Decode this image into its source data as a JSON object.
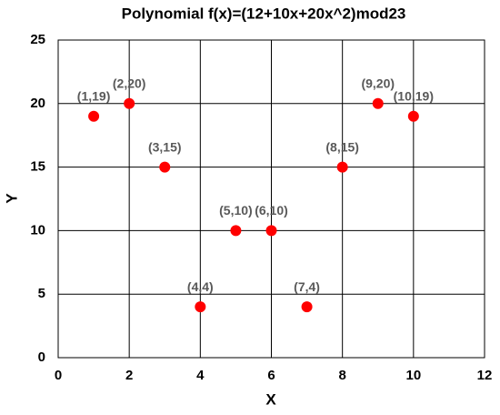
{
  "chart_data": {
    "type": "scatter",
    "title": "Polynomial f(x)=(12+10x+20x^2)mod23",
    "x_label": "X",
    "y_label": "Y",
    "series": [
      {
        "color": "#ff0000",
        "x": [
          1,
          2,
          3,
          4,
          5,
          6,
          7,
          8,
          9,
          10
        ],
        "values": [
          19,
          20,
          15,
          4,
          10,
          10,
          4,
          15,
          20,
          19
        ],
        "value_labels": [
          "(1,19)",
          "(2,20)",
          "(3,15)",
          "(4,4)",
          "(5,10)",
          "(6,10)",
          "(7,4)",
          "(8,15)",
          "(9,20)",
          "(10,19)"
        ]
      }
    ],
    "xlim": [
      0,
      12
    ],
    "xticks": [
      0,
      2,
      4,
      6,
      8,
      10,
      12
    ],
    "ylim": [
      0,
      25
    ],
    "yticks": [
      0,
      5,
      10,
      15,
      20,
      25
    ],
    "grid": true
  }
}
